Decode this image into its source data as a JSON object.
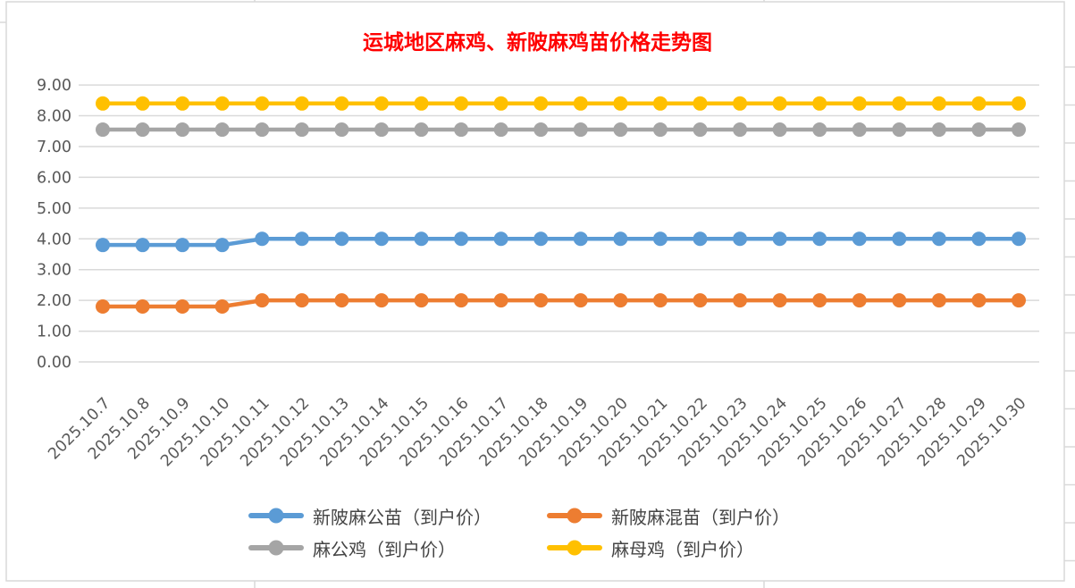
{
  "title": {
    "text": "运城地区麻鸡、新陂麻鸡苗价格走势图",
    "color": "#FF0000"
  },
  "colors": {
    "gridline": "#D9D9D9",
    "axis_text": "#595959",
    "sheet_line": "#D9D9D9",
    "legend_text": "#444444"
  },
  "y_axis": {
    "tick_labels": [
      "0.00",
      "1.00",
      "2.00",
      "3.00",
      "4.00",
      "5.00",
      "6.00",
      "7.00",
      "8.00",
      "9.00"
    ]
  },
  "chart_data": {
    "type": "line",
    "title": "运城地区麻鸡、新陂麻鸡苗价格走势图",
    "xlabel": "",
    "ylabel": "",
    "ylim": [
      0,
      9
    ],
    "ytick_step": 1,
    "grid": true,
    "legend_position": "bottom",
    "categories": [
      "2025.10.7",
      "2025.10.8",
      "2025.10.9",
      "2025.10.10",
      "2025.10.11",
      "2025.10.12",
      "2025.10.13",
      "2025.10.14",
      "2025.10.15",
      "2025.10.16",
      "2025.10.17",
      "2025.10.18",
      "2025.10.19",
      "2025.10.20",
      "2025.10.21",
      "2025.10.22",
      "2025.10.23",
      "2025.10.24",
      "2025.10.25",
      "2025.10.26",
      "2025.10.27",
      "2025.10.28",
      "2025.10.29",
      "2025.10.30"
    ],
    "series": [
      {
        "name": "新陂麻公苗（到户价）",
        "color": "#5B9BD5",
        "values": [
          3.8,
          3.8,
          3.8,
          3.8,
          4,
          4,
          4,
          4,
          4,
          4,
          4,
          4,
          4,
          4,
          4,
          4,
          4,
          4,
          4,
          4,
          4,
          4,
          4,
          4
        ]
      },
      {
        "name": "新陂麻混苗（到户价）",
        "color": "#ED7D31",
        "values": [
          1.8,
          1.8,
          1.8,
          1.8,
          2,
          2,
          2,
          2,
          2,
          2,
          2,
          2,
          2,
          2,
          2,
          2,
          2,
          2,
          2,
          2,
          2,
          2,
          2,
          2
        ]
      },
      {
        "name": "麻公鸡（到户价）",
        "color": "#A5A5A5",
        "values": [
          7.55,
          7.55,
          7.55,
          7.55,
          7.55,
          7.55,
          7.55,
          7.55,
          7.55,
          7.55,
          7.55,
          7.55,
          7.55,
          7.55,
          7.55,
          7.55,
          7.55,
          7.55,
          7.55,
          7.55,
          7.55,
          7.55,
          7.55,
          7.55
        ]
      },
      {
        "name": "麻母鸡（到户价）",
        "color": "#FFC000",
        "values": [
          8.4,
          8.4,
          8.4,
          8.4,
          8.4,
          8.4,
          8.4,
          8.4,
          8.4,
          8.4,
          8.4,
          8.4,
          8.4,
          8.4,
          8.4,
          8.4,
          8.4,
          8.4,
          8.4,
          8.4,
          8.4,
          8.4,
          8.4,
          8.4
        ]
      }
    ]
  }
}
